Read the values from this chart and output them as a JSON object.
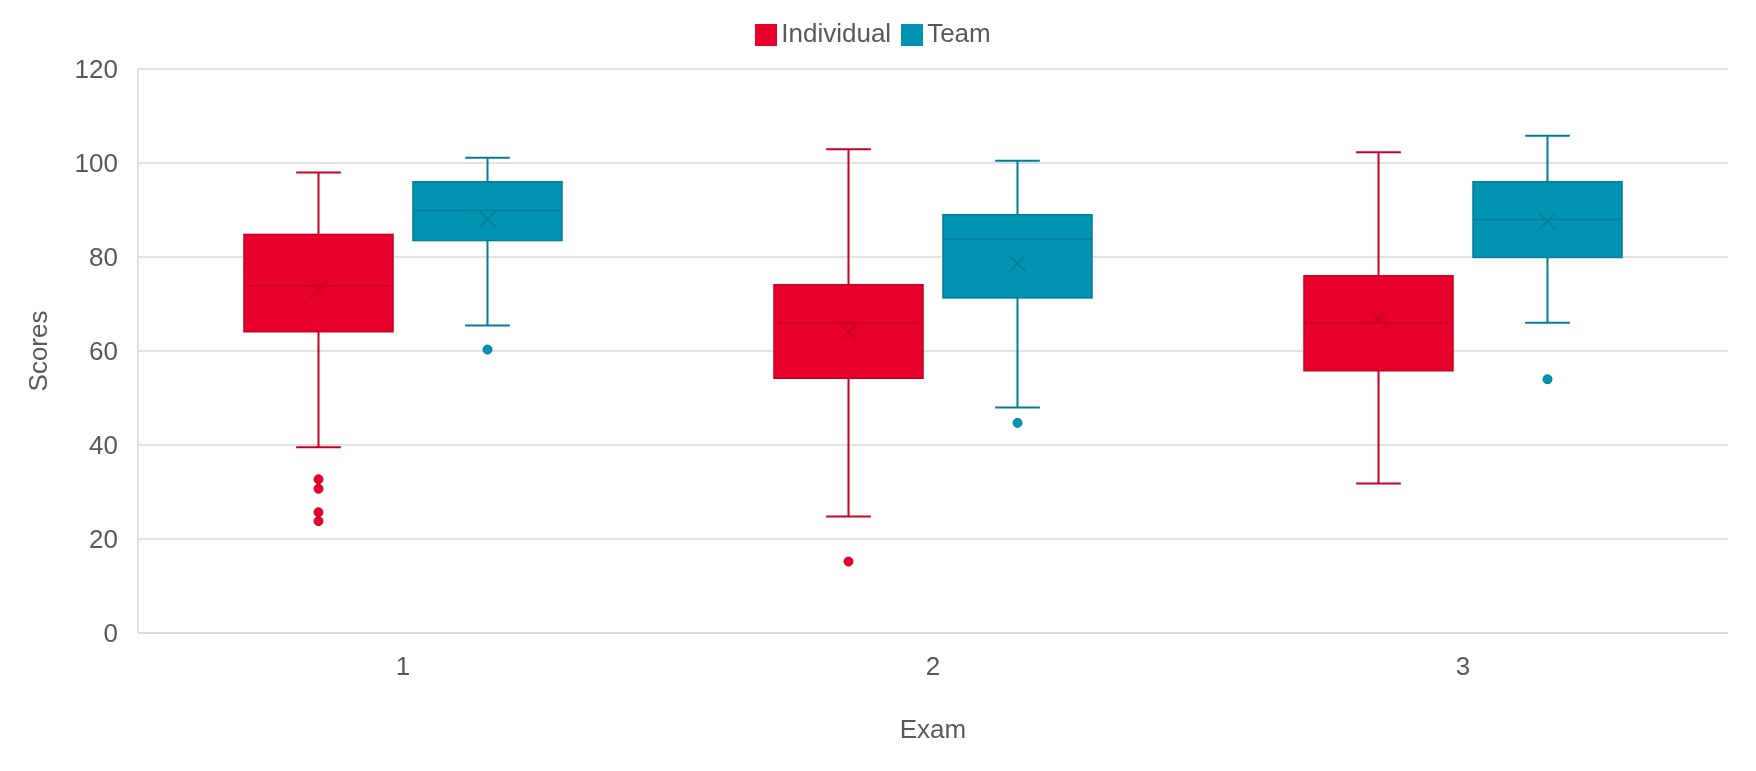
{
  "chart_data": {
    "type": "box",
    "xlabel": "Exam",
    "ylabel": "Scores",
    "categories": [
      "1",
      "2",
      "3"
    ],
    "ylim": [
      0,
      120
    ],
    "yticks": [
      0,
      20,
      40,
      60,
      80,
      100,
      120
    ],
    "grid": "y",
    "legend": "top",
    "series": [
      {
        "name": "Individual",
        "color": "#e8002a",
        "boxes": [
          {
            "low": 39.5,
            "q1": 64.1,
            "median": 73.9,
            "q3": 84.8,
            "high": 98.0,
            "mean": 73.1,
            "outliers": [
              32.7,
              30.7,
              25.7,
              23.8
            ]
          },
          {
            "low": 24.8,
            "q1": 54.2,
            "median": 65.9,
            "q3": 74.1,
            "high": 102.9,
            "mean": 63.9,
            "outliers": [
              15.2
            ]
          },
          {
            "low": 31.8,
            "q1": 55.8,
            "median": 66.0,
            "q3": 76.0,
            "high": 102.3,
            "mean": 66.8
          }
        ]
      },
      {
        "name": "Team",
        "color": "#0093b2",
        "boxes": [
          {
            "low": 65.4,
            "q1": 83.5,
            "median": 89.9,
            "q3": 96.0,
            "high": 101.1,
            "mean": 88.0,
            "outliers": [
              60.3
            ]
          },
          {
            "low": 48.0,
            "q1": 71.3,
            "median": 83.8,
            "q3": 89.0,
            "high": 100.5,
            "mean": 78.6,
            "outliers": [
              44.7
            ]
          },
          {
            "low": 66.0,
            "q1": 79.9,
            "median": 88.0,
            "q3": 96.0,
            "high": 105.8,
            "mean": 87.6,
            "outliers": [
              54.0
            ]
          }
        ]
      }
    ]
  }
}
